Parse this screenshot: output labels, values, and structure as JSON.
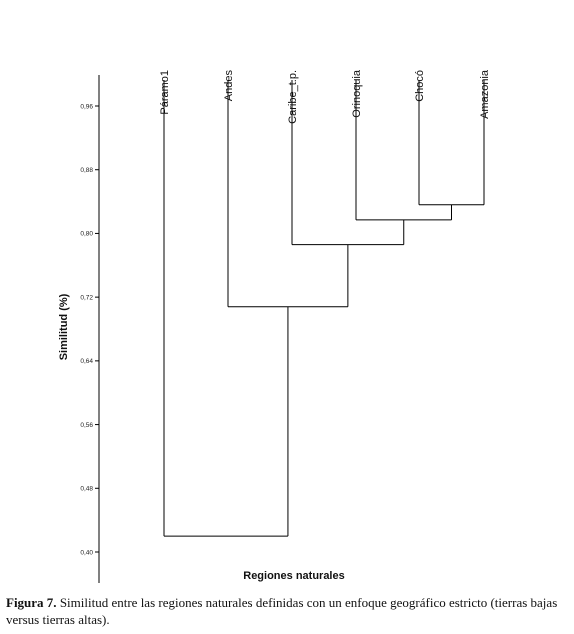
{
  "chart_data": {
    "type": "dendrogram",
    "ylabel": "Similitud (%)",
    "xlabel": "Regiones naturales",
    "yticks": [
      "0,40",
      "0,48",
      "0,56",
      "0,64",
      "0,72",
      "0,80",
      "0,88",
      "0,96"
    ],
    "ylim": [
      0.4,
      0.96
    ],
    "leaves": [
      "Páramo1",
      "Andes",
      "Caribe_t.p.",
      "Orinoquia",
      "Chocó",
      "Amazonia"
    ],
    "merges": [
      {
        "members": [
          "Chocó",
          "Amazonia"
        ],
        "similarity": 0.836
      },
      {
        "members": [
          "Orinoquia",
          "Chocó + Amazonia"
        ],
        "similarity": 0.817
      },
      {
        "members": [
          "Caribe_t.p.",
          "Orinoquia + Chocó + Amazonia"
        ],
        "similarity": 0.786
      },
      {
        "members": [
          "Andes",
          "Caribe_t.p. + Orinoquia + Chocó + Amazonia"
        ],
        "similarity": 0.708
      },
      {
        "members": [
          "Páramo1",
          "Andes + Caribe_t.p. + Orinoquia + Chocó + Amazonia"
        ],
        "similarity": 0.42
      }
    ]
  },
  "caption": {
    "label": "Figura 7.",
    "text": " Similitud entre las regiones naturales definidas con un enfoque geográfico estricto (tierras bajas versus tierras altas)."
  }
}
